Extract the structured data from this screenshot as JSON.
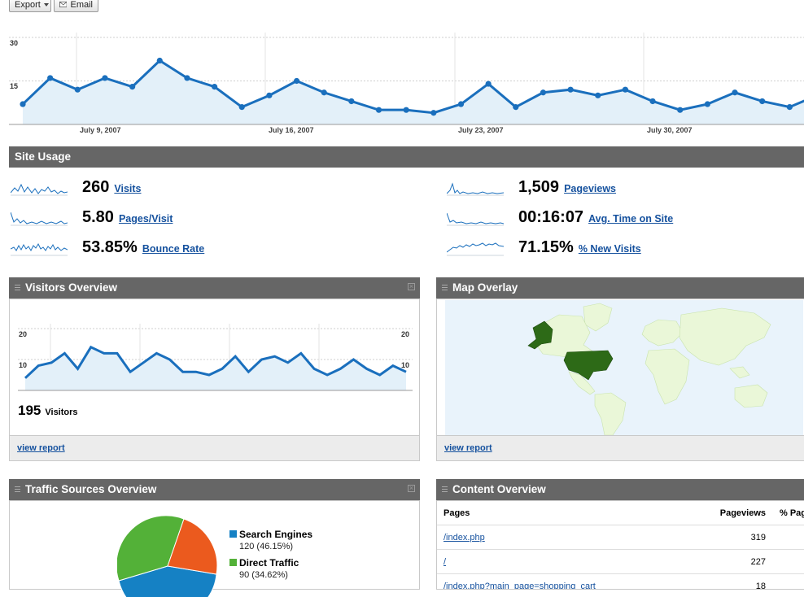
{
  "toolbar": {
    "export_label": "Export",
    "email_label": "Email"
  },
  "main_chart": {
    "y_ticks": [
      "30",
      "15"
    ],
    "date_labels": [
      "July 9, 2007",
      "July 16, 2007",
      "July 23, 2007",
      "July 30, 2007"
    ],
    "color": "#1a6fbd"
  },
  "site_usage": {
    "title": "Site Usage",
    "metrics": [
      {
        "value": "260",
        "label": "Visits"
      },
      {
        "value": "5.80",
        "label": "Pages/Visit"
      },
      {
        "value": "53.85%",
        "label": "Bounce Rate"
      },
      {
        "value": "1,509",
        "label": "Pageviews"
      },
      {
        "value": "00:16:07",
        "label": "Avg. Time on Site"
      },
      {
        "value": "71.15%",
        "label": "% New Visits"
      }
    ]
  },
  "visitors_overview": {
    "title": "Visitors Overview",
    "y_left": [
      "20",
      "10"
    ],
    "y_right": [
      "20",
      "10"
    ],
    "count": "195",
    "count_label": "Visitors",
    "view_report": "view report"
  },
  "map_overlay": {
    "title": "Map Overlay",
    "view_report": "view report",
    "highlight_color": "#2d6a17"
  },
  "traffic_sources": {
    "title": "Traffic Sources Overview",
    "legend": [
      {
        "name": "Search Engines",
        "detail": "120 (46.15%)",
        "color": "#1581c4"
      },
      {
        "name": "Direct Traffic",
        "detail": "90 (34.62%)",
        "color": "#53b138"
      }
    ],
    "pie_colors": [
      "#1581c4",
      "#53b138",
      "#eb5a1e"
    ]
  },
  "content_overview": {
    "title": "Content Overview",
    "headers": [
      "Pages",
      "Pageviews",
      "% Pag"
    ],
    "rows": [
      {
        "page": "/index.php",
        "views": "319"
      },
      {
        "page": "/",
        "views": "227"
      },
      {
        "page": "/index.php?main_page=shopping_cart",
        "views": "18"
      }
    ]
  },
  "chart_data": {
    "type": "line",
    "ylim": [
      0,
      30
    ],
    "values": [
      7,
      16,
      12,
      16,
      13,
      22,
      16,
      13,
      6,
      10,
      15,
      11,
      8,
      5,
      5,
      4,
      7,
      14,
      6,
      11,
      12,
      10,
      12,
      8,
      5,
      7,
      11,
      8,
      6,
      10
    ]
  },
  "visitors_chart_data": {
    "type": "line",
    "ylim": [
      0,
      20
    ],
    "values": [
      4,
      8,
      9,
      12,
      7,
      14,
      12,
      12,
      6,
      9,
      12,
      10,
      6,
      6,
      5,
      7,
      11,
      6,
      10,
      11,
      9,
      12,
      7,
      5,
      7,
      10,
      7,
      5,
      8,
      6
    ]
  }
}
